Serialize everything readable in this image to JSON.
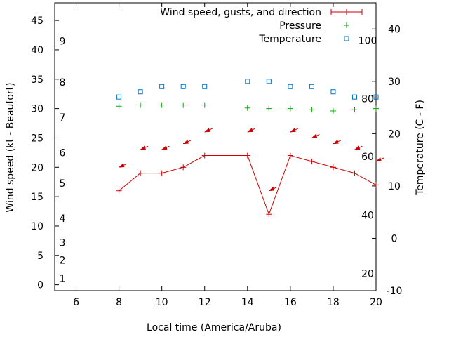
{
  "chart_data": {
    "type": "line",
    "xlabel": "Local time (America/Aruba)",
    "ylabel": "Wind speed (kt - Beaufort)",
    "y2label": "Temperature (C - F)",
    "xlim": [
      5,
      20
    ],
    "ylim": [
      -1,
      48
    ],
    "y2lim": [
      -10,
      45
    ],
    "xticks": [
      6,
      8,
      10,
      12,
      14,
      16,
      18,
      20
    ],
    "yticks": [
      0,
      5,
      10,
      15,
      20,
      25,
      30,
      35,
      40,
      45
    ],
    "y2ticks": [
      -10,
      0,
      10,
      20,
      30,
      40
    ],
    "beaufort_labels": [
      {
        "label": "1",
        "y": 1.1
      },
      {
        "label": "2",
        "y": 4.2
      },
      {
        "label": "3",
        "y": 7.2
      },
      {
        "label": "4",
        "y": 11.3
      },
      {
        "label": "5",
        "y": 17.3
      },
      {
        "label": "6",
        "y": 22.5
      },
      {
        "label": "7",
        "y": 28.5
      },
      {
        "label": "8",
        "y": 34.5
      },
      {
        "label": "9",
        "y": 41.5
      }
    ],
    "fahrenheit_labels": [
      {
        "label": "20",
        "y": -6.7
      },
      {
        "label": "40",
        "y": 4.4
      },
      {
        "label": "60",
        "y": 15.6
      },
      {
        "label": "80",
        "y": 26.7
      },
      {
        "label": "100",
        "y": 37.8
      }
    ],
    "legend_position": "top-right",
    "series": [
      {
        "name": "Wind speed, gusts, and direction",
        "color": "#cc0000",
        "axis": "y",
        "style": "line-plus",
        "x": [
          8,
          9,
          10,
          11,
          12,
          14,
          15,
          16,
          17,
          18,
          19,
          20
        ],
        "y": [
          16,
          19,
          19,
          20,
          22,
          22,
          12,
          22,
          21,
          20,
          19,
          17
        ]
      },
      {
        "name": "",
        "color": "#cc0000",
        "axis": "y",
        "style": "arrow",
        "x": [
          8,
          9,
          10,
          11,
          12,
          14,
          15,
          16,
          17,
          18,
          19,
          20
        ],
        "y": [
          20,
          23,
          23,
          24,
          26,
          26,
          16,
          26,
          25,
          24,
          23,
          21
        ]
      },
      {
        "name": "Pressure",
        "color": "#00aa00",
        "axis": "y",
        "style": "plus",
        "x": [
          8,
          9,
          10,
          11,
          12,
          14,
          15,
          16,
          17,
          18,
          19,
          20
        ],
        "y": [
          30.4,
          30.6,
          30.6,
          30.6,
          30.6,
          30.1,
          30.0,
          30.0,
          29.8,
          29.6,
          29.8,
          30.0
        ]
      },
      {
        "name": "Temperature",
        "color": "#0072c6",
        "axis": "y2",
        "style": "square",
        "x": [
          8,
          9,
          10,
          11,
          12,
          14,
          15,
          16,
          17,
          18,
          19,
          20
        ],
        "y": [
          27,
          28,
          29,
          29,
          29,
          30,
          30,
          29,
          29,
          28,
          27,
          27
        ]
      }
    ]
  }
}
